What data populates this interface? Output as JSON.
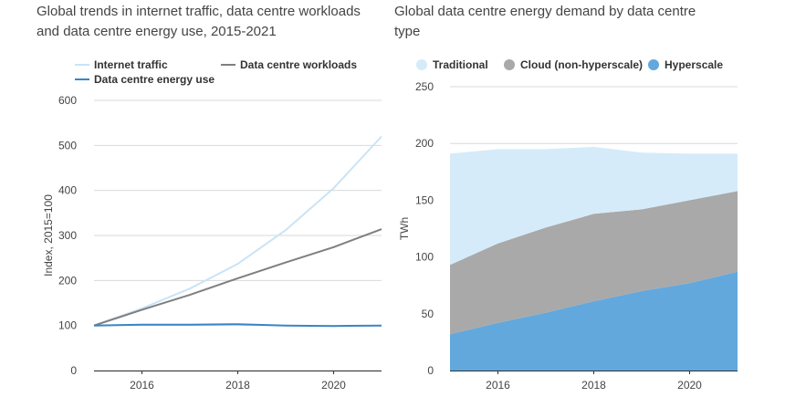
{
  "chart_data": [
    {
      "type": "line",
      "title": "Global trends in internet traffic, data centre workloads and data centre energy use, 2015-2021",
      "ylabel": "Index, 2015=100",
      "xlabel": "",
      "xlim": [
        2015,
        2021
      ],
      "ylim": [
        0,
        600
      ],
      "yticks": [
        0,
        100,
        200,
        300,
        400,
        500,
        600
      ],
      "xticks": [
        2016,
        2018,
        2020
      ],
      "grid": true,
      "legend_position": "top",
      "x": [
        2015,
        2016,
        2017,
        2018,
        2019,
        2020,
        2021
      ],
      "series": [
        {
          "name": "Internet traffic",
          "color": "#c9e4f7",
          "values": [
            100,
            138,
            182,
            237,
            312,
            405,
            520
          ]
        },
        {
          "name": "Data centre workloads",
          "color": "#7f7f7f",
          "values": [
            100,
            135,
            168,
            205,
            240,
            274,
            314
          ]
        },
        {
          "name": "Data centre energy use",
          "color": "#3a85c6",
          "values": [
            100,
            102,
            102,
            103,
            100,
            99,
            100
          ]
        }
      ]
    },
    {
      "type": "area",
      "stacked": true,
      "title": "Global data centre energy demand by data centre type",
      "ylabel": "TWh",
      "xlabel": "",
      "xlim": [
        2015,
        2021
      ],
      "ylim": [
        0,
        250
      ],
      "yticks": [
        0,
        50,
        100,
        150,
        200,
        250
      ],
      "xticks": [
        2016,
        2018,
        2020
      ],
      "grid": true,
      "legend_position": "top",
      "x": [
        2015,
        2016,
        2017,
        2018,
        2019,
        2020,
        2021
      ],
      "series": [
        {
          "name": "Hyperscale",
          "color": "#62a8dd",
          "values": [
            32,
            42,
            51,
            61,
            70,
            77,
            87
          ]
        },
        {
          "name": "Cloud (non-hyperscale)",
          "color": "#a9a9a9",
          "values": [
            61,
            70,
            75,
            77,
            72,
            73,
            71
          ]
        },
        {
          "name": "Traditional",
          "color": "#d5ebfa",
          "values": [
            98,
            83,
            69,
            59,
            50,
            41,
            33
          ]
        }
      ],
      "legend_order": [
        "Traditional",
        "Cloud (non-hyperscale)",
        "Hyperscale"
      ]
    }
  ]
}
